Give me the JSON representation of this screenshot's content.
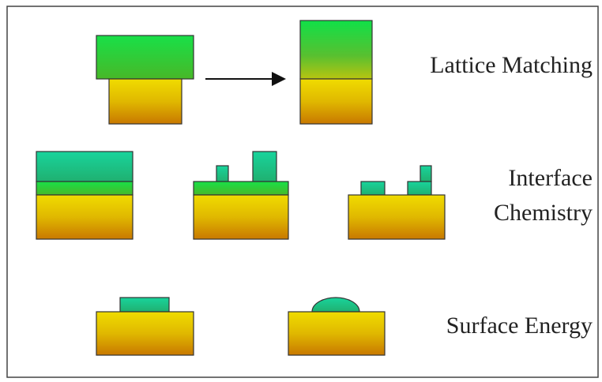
{
  "rows": [
    {
      "label_lines": [
        "Lattice Matching"
      ]
    },
    {
      "label_lines": [
        "Interface",
        "Chemistry"
      ]
    },
    {
      "label_lines": [
        "Surface Energy"
      ]
    }
  ]
}
